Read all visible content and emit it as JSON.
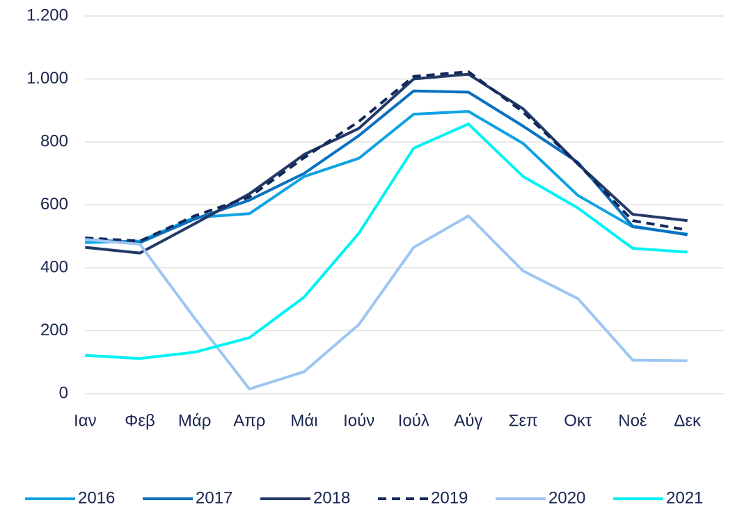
{
  "chart_data": {
    "type": "line",
    "categories": [
      "Ιαν",
      "Φεβ",
      "Μάρ",
      "Απρ",
      "Μάι",
      "Ιούν",
      "Ιούλ",
      "Αύγ",
      "Σεπ",
      "Οκτ",
      "Νοέ",
      "Δεκ"
    ],
    "series": [
      {
        "name": "2016",
        "color": "#0fa3e3",
        "values": [
          480,
          485,
          560,
          572,
          690,
          748,
          888,
          897,
          795,
          630,
          530,
          507
        ]
      },
      {
        "name": "2017",
        "color": "#0a70bf",
        "values": [
          490,
          480,
          555,
          615,
          700,
          820,
          962,
          958,
          850,
          735,
          532,
          505
        ]
      },
      {
        "name": "2018",
        "color": "#233a66",
        "values": [
          465,
          447,
          540,
          635,
          760,
          843,
          1000,
          1015,
          905,
          730,
          570,
          550
        ]
      },
      {
        "name": "2019",
        "color": "#12285a",
        "dashed": true,
        "values": [
          495,
          485,
          565,
          625,
          750,
          865,
          1008,
          1023,
          895,
          730,
          550,
          520
        ]
      },
      {
        "name": "2020",
        "color": "#9dc6f2",
        "values": [
          490,
          475,
          240,
          15,
          70,
          220,
          465,
          565,
          390,
          302,
          107,
          105
        ]
      },
      {
        "name": "2021",
        "color": "#00f2f2",
        "values": [
          122,
          112,
          132,
          178,
          307,
          510,
          780,
          857,
          690,
          590,
          462,
          450
        ]
      }
    ],
    "ylim": [
      0,
      1200
    ],
    "yticks": [
      0,
      200,
      400,
      600,
      800,
      {
        "value": 1000,
        "label": "1.000"
      },
      {
        "value": 1200,
        "label": "1.200"
      }
    ],
    "grid": true,
    "legend": "bottom"
  }
}
